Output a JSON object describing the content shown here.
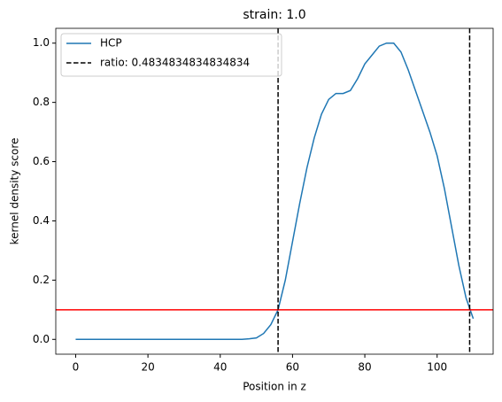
{
  "chart_data": {
    "type": "line",
    "title": "strain: 1.0",
    "xlabel": "Position in z",
    "ylabel": "kernel density score",
    "x": [
      0,
      2,
      4,
      6,
      8,
      10,
      12,
      14,
      16,
      18,
      20,
      22,
      24,
      26,
      28,
      30,
      32,
      34,
      36,
      38,
      40,
      42,
      44,
      46,
      48,
      50,
      52,
      54,
      56,
      58,
      60,
      62,
      64,
      66,
      68,
      70,
      72,
      74,
      76,
      78,
      80,
      82,
      84,
      86,
      88,
      90,
      92,
      94,
      96,
      98,
      100,
      102,
      104,
      106,
      108,
      110
    ],
    "series": [
      {
        "name": "HCP",
        "color": "#1f77b4",
        "values": [
          0,
          0,
          0,
          0,
          0,
          0,
          0,
          0,
          0,
          0,
          0,
          0,
          0,
          0,
          0,
          0,
          0,
          0,
          0,
          0,
          0,
          0,
          0,
          0,
          0.002,
          0.005,
          0.02,
          0.05,
          0.1,
          0.2,
          0.33,
          0.46,
          0.58,
          0.68,
          0.76,
          0.81,
          0.83,
          0.83,
          0.84,
          0.88,
          0.93,
          0.96,
          0.99,
          1.0,
          1.0,
          0.97,
          0.91,
          0.84,
          0.77,
          0.7,
          0.62,
          0.51,
          0.38,
          0.25,
          0.14,
          0.07
        ]
      }
    ],
    "vlines": {
      "name": "ratio: 0.4834834834834834",
      "color": "#000000",
      "values": [
        56,
        109
      ]
    },
    "hline": {
      "color": "#ff0000",
      "value": 0.1
    },
    "xlim": [
      -5.5,
      115.5
    ],
    "ylim": [
      -0.05,
      1.05
    ],
    "xticks": [
      0,
      20,
      40,
      60,
      80,
      100
    ],
    "yticks": [
      {
        "value": 0,
        "label": "0.0"
      },
      {
        "value": 0.2,
        "label": "0.2"
      },
      {
        "value": 0.4,
        "label": "0.4"
      },
      {
        "value": 0.6,
        "label": "0.6"
      },
      {
        "value": 0.8,
        "label": "0.8"
      },
      {
        "value": 1.0,
        "label": "1.0"
      }
    ],
    "legend": "upper left"
  }
}
